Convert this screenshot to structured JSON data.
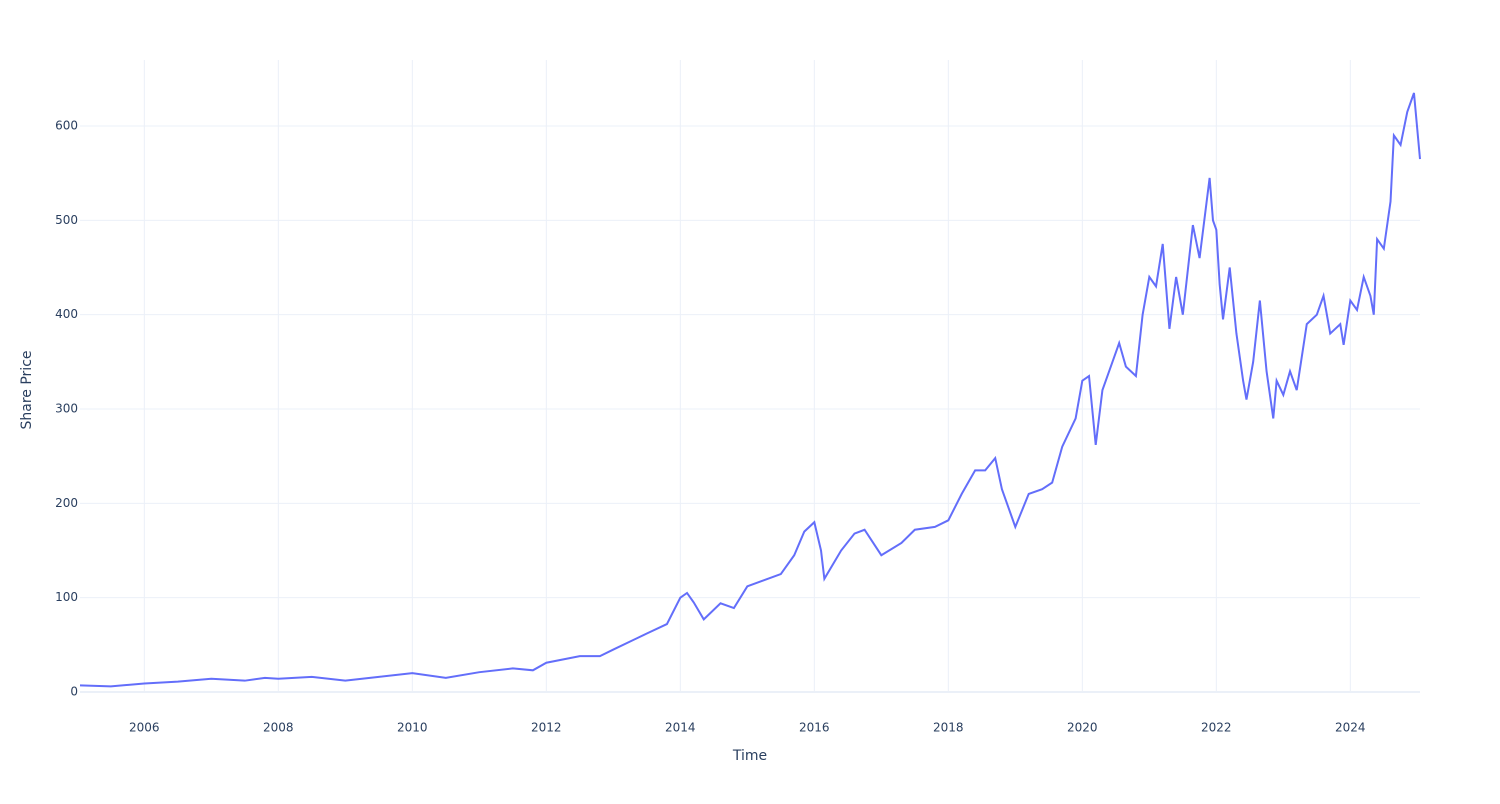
{
  "chart_data": {
    "type": "line",
    "xlabel": "Time",
    "ylabel": "Share Price",
    "xlim": [
      2005.04,
      2025.04
    ],
    "xticks": [
      2006,
      2008,
      2010,
      2012,
      2014,
      2016,
      2018,
      2020,
      2022,
      2024
    ],
    "ylim": [
      0,
      670
    ],
    "yticks": [
      0,
      100,
      200,
      300,
      400,
      500,
      600
    ],
    "grid": true,
    "x": [
      2005.04,
      2005.5,
      2006.0,
      2006.5,
      2007.0,
      2007.5,
      2007.8,
      2008.0,
      2008.5,
      2009.0,
      2009.5,
      2010.0,
      2010.5,
      2011.0,
      2011.5,
      2011.8,
      2012.0,
      2012.5,
      2012.8,
      2013.0,
      2013.5,
      2013.8,
      2014.0,
      2014.1,
      2014.2,
      2014.35,
      2014.6,
      2014.8,
      2015.0,
      2015.5,
      2015.7,
      2015.85,
      2016.0,
      2016.1,
      2016.15,
      2016.4,
      2016.6,
      2016.75,
      2017.0,
      2017.3,
      2017.5,
      2017.8,
      2018.0,
      2018.2,
      2018.4,
      2018.55,
      2018.7,
      2018.8,
      2018.95,
      2019.0,
      2019.2,
      2019.4,
      2019.55,
      2019.7,
      2019.9,
      2020.0,
      2020.1,
      2020.2,
      2020.3,
      2020.4,
      2020.55,
      2020.65,
      2020.8,
      2020.9,
      2021.0,
      2021.1,
      2021.2,
      2021.3,
      2021.4,
      2021.5,
      2021.65,
      2021.75,
      2021.9,
      2021.95,
      2022.0,
      2022.05,
      2022.1,
      2022.2,
      2022.3,
      2022.4,
      2022.45,
      2022.55,
      2022.65,
      2022.75,
      2022.85,
      2022.9,
      2023.0,
      2023.1,
      2023.2,
      2023.35,
      2023.5,
      2023.6,
      2023.7,
      2023.85,
      2023.9,
      2024.0,
      2024.1,
      2024.2,
      2024.3,
      2024.35,
      2024.4,
      2024.5,
      2024.6,
      2024.65,
      2024.75,
      2024.85,
      2024.95,
      2025.04
    ],
    "series": [
      {
        "name": "Share Price",
        "color": "#636efa",
        "values": [
          7,
          6,
          9,
          11,
          14,
          12,
          15,
          14,
          16,
          12,
          16,
          20,
          15,
          21,
          25,
          23,
          31,
          38,
          38,
          45,
          62,
          72,
          100,
          105,
          95,
          77,
          94,
          89,
          112,
          125,
          145,
          170,
          180,
          150,
          120,
          150,
          168,
          172,
          145,
          158,
          172,
          175,
          182,
          210,
          235,
          235,
          248,
          215,
          185,
          175,
          210,
          215,
          222,
          260,
          290,
          330,
          335,
          262,
          320,
          340,
          370,
          345,
          335,
          400,
          440,
          430,
          475,
          385,
          440,
          400,
          495,
          460,
          545,
          500,
          490,
          432,
          395,
          450,
          380,
          330,
          310,
          350,
          415,
          340,
          290,
          330,
          315,
          340,
          320,
          390,
          400,
          420,
          380,
          390,
          368,
          415,
          405,
          440,
          420,
          400,
          480,
          470,
          520,
          590,
          580,
          615,
          635,
          565
        ]
      }
    ]
  }
}
